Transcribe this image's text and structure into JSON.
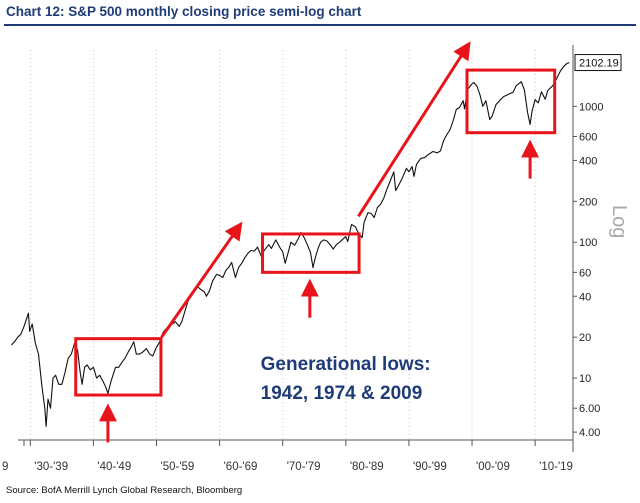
{
  "title": "Chart 12: S&P 500 monthly closing price semi-log chart",
  "source": "Source: BofA Merrill Lynch Global Research, Bloomberg",
  "chart_data": {
    "type": "line",
    "yscale": "log",
    "ylim": [
      3.5,
      2600
    ],
    "xlim": [
      1929,
      2016
    ],
    "y_axis_word": "Log",
    "last_value_label": "2102.19",
    "y_ticks": [
      {
        "value": 1000,
        "label": "1000"
      },
      {
        "value": 600,
        "label": "600"
      },
      {
        "value": 400,
        "label": "400"
      },
      {
        "value": 200,
        "label": "200"
      },
      {
        "value": 100,
        "label": "100"
      },
      {
        "value": 60,
        "label": "60"
      },
      {
        "value": 40,
        "label": "40"
      },
      {
        "value": 20,
        "label": "20"
      },
      {
        "value": 10,
        "label": "10"
      },
      {
        "value": 6,
        "label": "6.00"
      },
      {
        "value": 4,
        "label": "4.00"
      }
    ],
    "x_ticks": [
      {
        "x": 1929,
        "label": "9"
      },
      {
        "x": 1930,
        "label": "'30-'39"
      },
      {
        "x": 1940,
        "label": "'40-'49"
      },
      {
        "x": 1950,
        "label": "'50-'59"
      },
      {
        "x": 1960,
        "label": "'60-'69"
      },
      {
        "x": 1970,
        "label": "'70-'79"
      },
      {
        "x": 1980,
        "label": "'80-'89"
      },
      {
        "x": 1990,
        "label": "'90-'99"
      },
      {
        "x": 2000,
        "label": "'00-'09"
      },
      {
        "x": 2010,
        "label": "'10-'19"
      }
    ],
    "series": [
      {
        "color": "#111111",
        "points": [
          [
            1927.0,
            17.5
          ],
          [
            1927.5,
            18.5
          ],
          [
            1928.0,
            20
          ],
          [
            1928.5,
            21
          ],
          [
            1929.0,
            24
          ],
          [
            1929.7,
            30
          ],
          [
            1929.9,
            22
          ],
          [
            1930.3,
            25
          ],
          [
            1930.8,
            18
          ],
          [
            1931.3,
            15
          ],
          [
            1931.8,
            9
          ],
          [
            1932.3,
            6
          ],
          [
            1932.5,
            4.4
          ],
          [
            1932.8,
            7
          ],
          [
            1933.2,
            6
          ],
          [
            1933.6,
            10
          ],
          [
            1934.0,
            10.5
          ],
          [
            1934.5,
            9
          ],
          [
            1935.0,
            9
          ],
          [
            1935.5,
            11
          ],
          [
            1936.0,
            14
          ],
          [
            1936.5,
            15
          ],
          [
            1937.0,
            18
          ],
          [
            1937.5,
            16
          ],
          [
            1937.9,
            11
          ],
          [
            1938.2,
            9
          ],
          [
            1938.6,
            12
          ],
          [
            1939.0,
            12.5
          ],
          [
            1939.5,
            11.5
          ],
          [
            1940.0,
            12
          ],
          [
            1940.5,
            10
          ],
          [
            1941.0,
            10.5
          ],
          [
            1941.5,
            9.5
          ],
          [
            1942.0,
            8.5
          ],
          [
            1942.3,
            7.7
          ],
          [
            1942.8,
            9.5
          ],
          [
            1943.5,
            12
          ],
          [
            1944.0,
            12
          ],
          [
            1944.5,
            13
          ],
          [
            1945.0,
            14
          ],
          [
            1945.5,
            15.5
          ],
          [
            1946.0,
            17
          ],
          [
            1946.4,
            18.5
          ],
          [
            1946.8,
            15
          ],
          [
            1947.3,
            15
          ],
          [
            1947.8,
            15.5
          ],
          [
            1948.4,
            16.5
          ],
          [
            1948.9,
            15
          ],
          [
            1949.4,
            14.5
          ],
          [
            1949.9,
            16.5
          ],
          [
            1950.5,
            18.5
          ],
          [
            1951.0,
            21.5
          ],
          [
            1951.5,
            23
          ],
          [
            1952.0,
            24
          ],
          [
            1952.5,
            25
          ],
          [
            1953.0,
            26
          ],
          [
            1953.6,
            24
          ],
          [
            1954.0,
            26
          ],
          [
            1954.5,
            31
          ],
          [
            1955.0,
            37
          ],
          [
            1955.5,
            42
          ],
          [
            1956.0,
            44
          ],
          [
            1956.5,
            47
          ],
          [
            1957.0,
            45
          ],
          [
            1957.6,
            43
          ],
          [
            1957.9,
            40
          ],
          [
            1958.4,
            44
          ],
          [
            1958.9,
            52
          ],
          [
            1959.5,
            58
          ],
          [
            1960.0,
            57
          ],
          [
            1960.5,
            55
          ],
          [
            1961.0,
            62
          ],
          [
            1961.5,
            66
          ],
          [
            1961.9,
            71
          ],
          [
            1962.5,
            55
          ],
          [
            1963.0,
            65
          ],
          [
            1963.5,
            70
          ],
          [
            1964.0,
            77
          ],
          [
            1964.5,
            83
          ],
          [
            1965.0,
            87
          ],
          [
            1965.5,
            86
          ],
          [
            1966.0,
            92
          ],
          [
            1966.7,
            77
          ],
          [
            1967.0,
            86
          ],
          [
            1967.8,
            96
          ],
          [
            1968.2,
            90
          ],
          [
            1968.9,
            104
          ],
          [
            1969.5,
            92
          ],
          [
            1970.0,
            85
          ],
          [
            1970.4,
            70
          ],
          [
            1970.8,
            82
          ],
          [
            1971.3,
            100
          ],
          [
            1971.9,
            95
          ],
          [
            1972.5,
            107
          ],
          [
            1972.9,
            118
          ],
          [
            1973.4,
            108
          ],
          [
            1973.9,
            96
          ],
          [
            1974.4,
            84
          ],
          [
            1974.8,
            65
          ],
          [
            1975.2,
            78
          ],
          [
            1975.6,
            90
          ],
          [
            1976.0,
            100
          ],
          [
            1976.5,
            104
          ],
          [
            1977.0,
            102
          ],
          [
            1977.5,
            96
          ],
          [
            1978.0,
            89
          ],
          [
            1978.5,
            96
          ],
          [
            1979.0,
            100
          ],
          [
            1979.5,
            105
          ],
          [
            1980.0,
            110
          ],
          [
            1980.3,
            101
          ],
          [
            1980.9,
            135
          ],
          [
            1981.5,
            130
          ],
          [
            1982.0,
            117
          ],
          [
            1982.6,
            108
          ],
          [
            1982.9,
            140
          ],
          [
            1983.5,
            165
          ],
          [
            1984.0,
            163
          ],
          [
            1984.5,
            152
          ],
          [
            1985.0,
            180
          ],
          [
            1985.5,
            190
          ],
          [
            1986.0,
            210
          ],
          [
            1986.5,
            245
          ],
          [
            1987.0,
            280
          ],
          [
            1987.6,
            330
          ],
          [
            1987.9,
            240
          ],
          [
            1988.5,
            270
          ],
          [
            1989.0,
            300
          ],
          [
            1989.6,
            350
          ],
          [
            1990.0,
            330
          ],
          [
            1990.5,
            360
          ],
          [
            1990.8,
            305
          ],
          [
            1991.2,
            375
          ],
          [
            1991.9,
            415
          ],
          [
            1992.5,
            420
          ],
          [
            1993.0,
            440
          ],
          [
            1993.8,
            465
          ],
          [
            1994.5,
            455
          ],
          [
            1995.0,
            470
          ],
          [
            1995.5,
            560
          ],
          [
            1996.0,
            620
          ],
          [
            1996.5,
            670
          ],
          [
            1997.0,
            780
          ],
          [
            1997.5,
            950
          ],
          [
            1998.0,
            980
          ],
          [
            1998.6,
            1100
          ],
          [
            1998.8,
            960
          ],
          [
            1999.3,
            1330
          ],
          [
            1999.9,
            1450
          ],
          [
            2000.3,
            1500
          ],
          [
            2000.8,
            1400
          ],
          [
            2001.3,
            1200
          ],
          [
            2001.7,
            1000
          ],
          [
            2002.2,
            1100
          ],
          [
            2002.8,
            800
          ],
          [
            2003.2,
            850
          ],
          [
            2003.8,
            1030
          ],
          [
            2004.5,
            1120
          ],
          [
            2005.0,
            1180
          ],
          [
            2005.8,
            1230
          ],
          [
            2006.5,
            1270
          ],
          [
            2007.0,
            1420
          ],
          [
            2007.8,
            1520
          ],
          [
            2008.3,
            1320
          ],
          [
            2008.8,
            900
          ],
          [
            2009.2,
            735
          ],
          [
            2009.5,
            920
          ],
          [
            2010.0,
            1120
          ],
          [
            2010.5,
            1060
          ],
          [
            2011.0,
            1280
          ],
          [
            2011.6,
            1130
          ],
          [
            2012.0,
            1310
          ],
          [
            2012.8,
            1420
          ],
          [
            2013.5,
            1630
          ],
          [
            2014.0,
            1820
          ],
          [
            2014.5,
            1960
          ],
          [
            2015.0,
            2060
          ],
          [
            2015.4,
            2102
          ]
        ]
      }
    ],
    "highlight_boxes": [
      {
        "x0": 1937.2,
        "x1": 1950.7,
        "y0": 7.5,
        "y1": 19.5
      },
      {
        "x0": 1966.8,
        "x1": 1982.1,
        "y0": 60,
        "y1": 115
      },
      {
        "x0": 1999.2,
        "x1": 2013.1,
        "y0": 640,
        "y1": 1850
      }
    ],
    "trend_arrows": [
      {
        "from": [
          1950.8,
          20
        ],
        "to": [
          1962.8,
          125
        ]
      },
      {
        "from": [
          1982.0,
          155
        ],
        "to": [
          1999.0,
          2650
        ]
      }
    ],
    "low_arrows": [
      {
        "x": 1942.3,
        "y_tip": 6.4
      },
      {
        "x": 1974.3,
        "y_tip": 53
      },
      {
        "x": 2009.2,
        "y_tip": 560
      }
    ],
    "annotation": {
      "line1": "Generational lows:",
      "line2": "1942, 1974 & 2009",
      "x": 1966.5,
      "y1": 11.5,
      "y2": 7.0
    }
  }
}
